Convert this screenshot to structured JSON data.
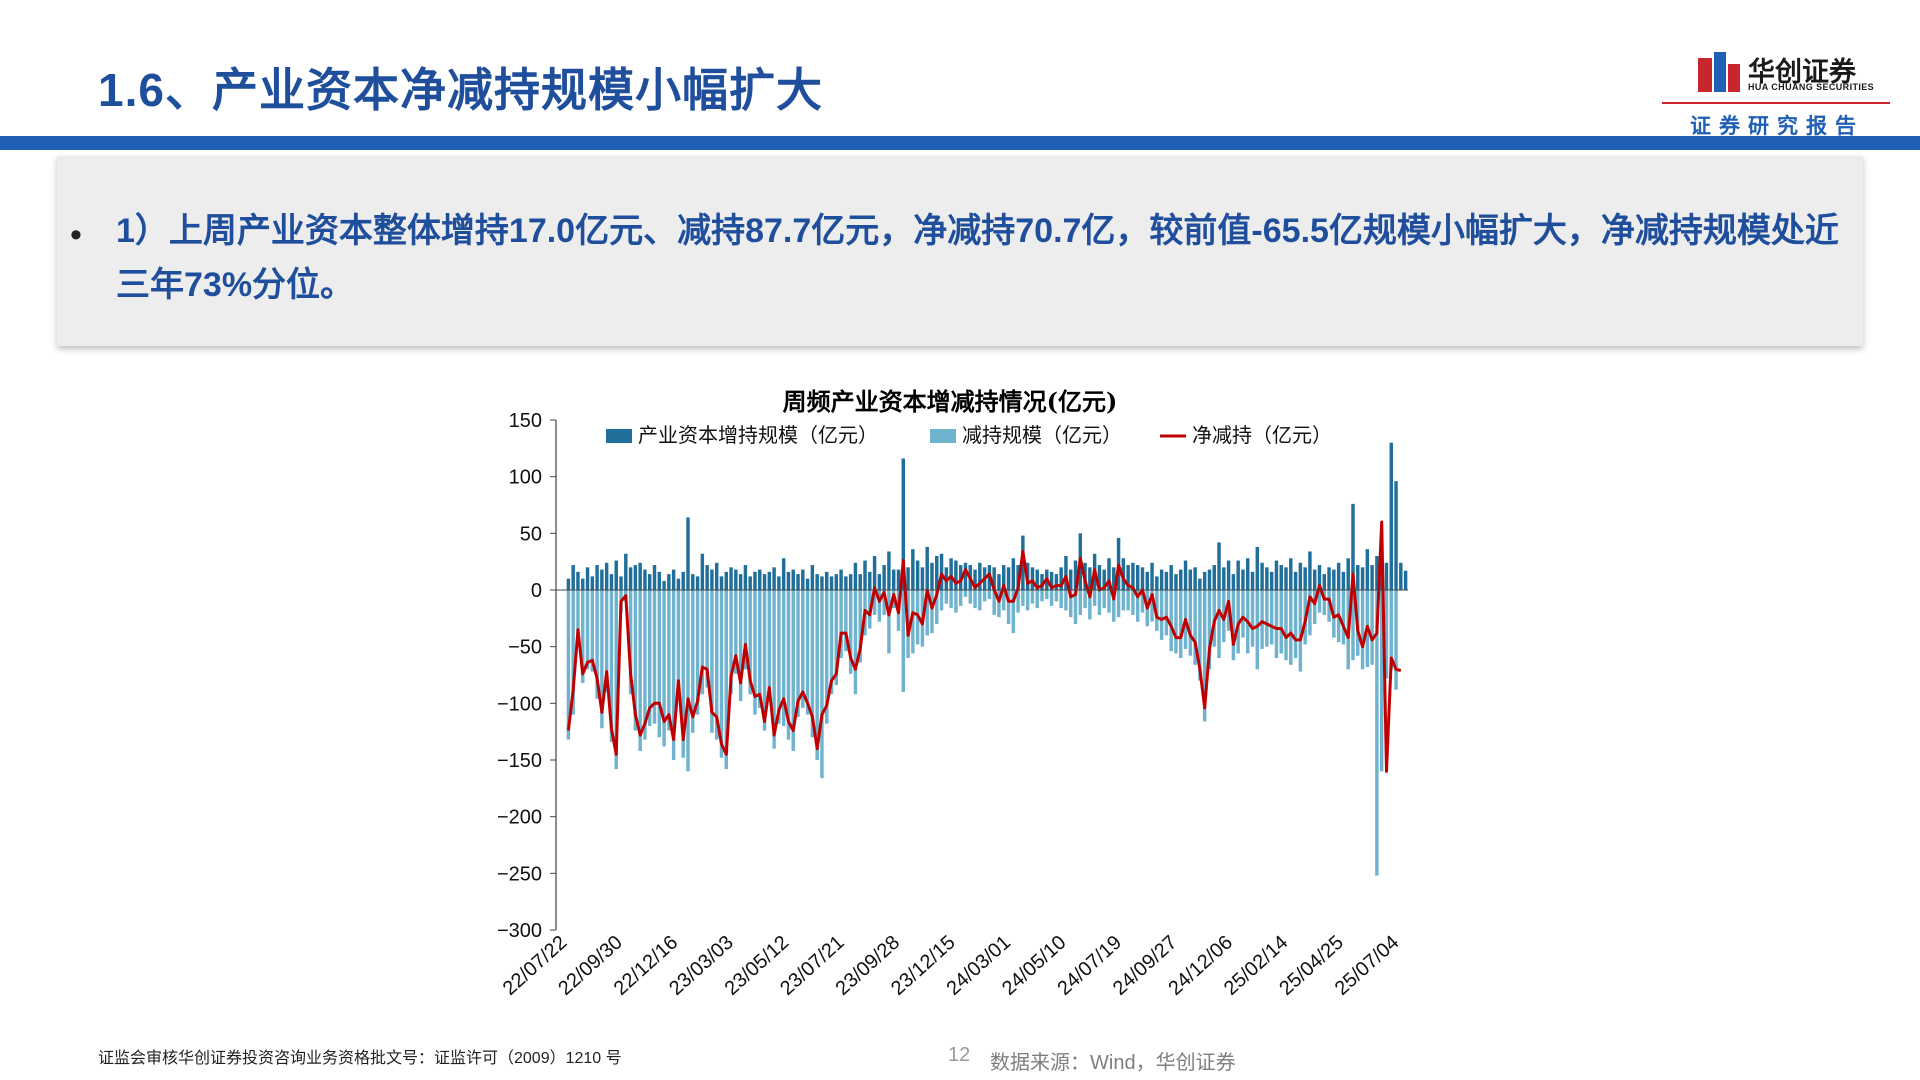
{
  "header": {
    "title": "1.6、产业资本净减持规模小幅扩大",
    "logo_cn": "华创证券",
    "logo_en": "HUA CHUANG SECURITIES",
    "report_tag": "证券研究报告"
  },
  "bullet": {
    "dot": "•",
    "text": "1）上周产业资本整体增持17.0亿元、减持87.7亿元，净减持70.7亿，较前值-65.5亿规模小幅扩大，净减持规模处近三年73%分位。"
  },
  "footer": {
    "license": "证监会审核华创证券投资咨询业务资格批文号：证监许可（2009）1210 号",
    "page": "12",
    "source": "数据来源：Wind，华创证券"
  },
  "colors": {
    "title": "#1f4e9c",
    "accent_bar": "#1f5fb5",
    "logo_red": "#c9252c",
    "increase": "#1f6f9a",
    "decrease": "#6fb3cf",
    "net": "#c00000"
  },
  "chart_data": {
    "type": "bar",
    "title": "周频产业资本增减持情况(亿元)",
    "ylim": [
      -300,
      150
    ],
    "yticks": [
      150,
      100,
      50,
      0,
      -50,
      -100,
      -150,
      -200,
      -250,
      -300
    ],
    "ytick_labels": [
      "150",
      "100",
      "50",
      "0",
      "−50",
      "−100",
      "−150",
      "−200",
      "−250",
      "−300"
    ],
    "xtick_labels": [
      "22/07/22",
      "22/09/30",
      "22/12/16",
      "23/03/03",
      "23/05/12",
      "23/07/21",
      "23/09/28",
      "23/12/15",
      "24/03/01",
      "24/05/10",
      "24/07/19",
      "24/09/27",
      "24/12/06",
      "25/02/14",
      "25/04/25",
      "25/07/04"
    ],
    "legend_position": "top",
    "series": [
      {
        "name": "产业资本增持规模（亿元）",
        "kind": "bar",
        "values": [
          10,
          22,
          16,
          10,
          20,
          12,
          22,
          18,
          24,
          14,
          26,
          12,
          32,
          20,
          22,
          24,
          18,
          14,
          22,
          16,
          8,
          14,
          18,
          10,
          16,
          64,
          14,
          12,
          32,
          22,
          18,
          24,
          12,
          16,
          20,
          18,
          14,
          22,
          12,
          16,
          18,
          14,
          16,
          20,
          12,
          28,
          16,
          18,
          14,
          18,
          10,
          22,
          14,
          12,
          16,
          12,
          14,
          18,
          12,
          14,
          24,
          14,
          26,
          16,
          30,
          14,
          22,
          34,
          18,
          18,
          116,
          20,
          36,
          26,
          20,
          38,
          24,
          30,
          32,
          20,
          28,
          26,
          22,
          24,
          22,
          18,
          24,
          20,
          22,
          20,
          14,
          22,
          20,
          28,
          22,
          48,
          24,
          20,
          18,
          14,
          18,
          16,
          14,
          20,
          30,
          18,
          26,
          50,
          24,
          20,
          32,
          22,
          18,
          28,
          20,
          46,
          28,
          22,
          24,
          22,
          20,
          16,
          24,
          12,
          18,
          16,
          22,
          14,
          18,
          26,
          18,
          20,
          10,
          16,
          18,
          22,
          42,
          20,
          26,
          14,
          26,
          18,
          28,
          16,
          38,
          24,
          20,
          16,
          26,
          22,
          20,
          28,
          16,
          24,
          20,
          34,
          18,
          22,
          14,
          20,
          18,
          24,
          16,
          28,
          76,
          22,
          20,
          36,
          22,
          30,
          18,
          24,
          130,
          96,
          24,
          17
        ]
      },
      {
        "name": "减持规模（亿元）",
        "kind": "bar",
        "values": [
          -132,
          -110,
          -45,
          -82,
          -70,
          -72,
          -96,
          -122,
          -90,
          -134,
          -158,
          -20,
          -10,
          -92,
          -124,
          -142,
          -132,
          -120,
          -118,
          -130,
          -138,
          -124,
          -150,
          -92,
          -148,
          -160,
          -126,
          -110,
          -92,
          -86,
          -126,
          -132,
          -148,
          -158,
          -92,
          -74,
          -98,
          -70,
          -92,
          -110,
          -104,
          -124,
          -98,
          -140,
          -118,
          -120,
          -132,
          -142,
          -112,
          -104,
          -110,
          -130,
          -150,
          -166,
          -118,
          -92,
          -84,
          -60,
          -54,
          -74,
          -92,
          -64,
          -40,
          -34,
          -22,
          -28,
          -22,
          -56,
          -16,
          -36,
          -90,
          -60,
          -56,
          -48,
          -50,
          -40,
          -38,
          -30,
          -18,
          -12,
          -16,
          -20,
          -14,
          -6,
          -12,
          -16,
          -18,
          -10,
          -8,
          -22,
          -24,
          -18,
          -30,
          -38,
          -20,
          -14,
          -18,
          -12,
          -16,
          -10,
          -8,
          -14,
          -10,
          -16,
          -18,
          -24,
          -30,
          -22,
          -16,
          -26,
          -14,
          -22,
          -16,
          -20,
          -28,
          -24,
          -18,
          -18,
          -22,
          -28,
          -20,
          -32,
          -28,
          -36,
          -44,
          -40,
          -54,
          -56,
          -60,
          -52,
          -58,
          -66,
          -80,
          -116,
          -70,
          -50,
          -60,
          -46,
          -36,
          -62,
          -56,
          -42,
          -56,
          -50,
          -70,
          -52,
          -50,
          -48,
          -60,
          -56,
          -62,
          -66,
          -60,
          -72,
          -48,
          -40,
          -30,
          -20,
          -22,
          -28,
          -42,
          -46,
          -48,
          -70,
          -62,
          -58,
          -70,
          -68,
          -66,
          -252,
          -160,
          -78,
          -70,
          -88
        ]
      },
      {
        "name": "净减持（亿元）",
        "kind": "line",
        "values": [
          -124,
          -88,
          -35,
          -74,
          -64,
          -62,
          -78,
          -108,
          -72,
          -122,
          -145,
          -10,
          -5,
          -74,
          -110,
          -128,
          -118,
          -104,
          -100,
          -100,
          -116,
          -110,
          -132,
          -80,
          -132,
          -96,
          -112,
          -98,
          -68,
          -70,
          -108,
          -112,
          -136,
          -145,
          -76,
          -58,
          -82,
          -48,
          -80,
          -94,
          -92,
          -116,
          -86,
          -128,
          -106,
          -96,
          -116,
          -124,
          -98,
          -90,
          -100,
          -112,
          -140,
          -110,
          -102,
          -80,
          -74,
          -38,
          -38,
          -60,
          -70,
          -52,
          -18,
          -22,
          2,
          -10,
          -2,
          -22,
          -4,
          -20,
          26,
          -40,
          -20,
          -22,
          -30,
          0,
          -16,
          -4,
          14,
          8,
          12,
          6,
          8,
          18,
          10,
          2,
          6,
          10,
          14,
          0,
          -10,
          4,
          -10,
          -10,
          2,
          34,
          6,
          8,
          2,
          4,
          10,
          2,
          4,
          4,
          12,
          -6,
          -4,
          28,
          8,
          -6,
          18,
          0,
          2,
          8,
          -8,
          22,
          10,
          4,
          2,
          -6,
          0,
          -16,
          -4,
          -24,
          -26,
          -24,
          -32,
          -42,
          -42,
          -26,
          -40,
          -46,
          -70,
          -104,
          -52,
          -28,
          -18,
          -26,
          -10,
          -48,
          -30,
          -24,
          -28,
          -34,
          -32,
          -28,
          -30,
          -32,
          -34,
          -34,
          -42,
          -38,
          -44,
          -44,
          -28,
          -6,
          -12,
          4,
          -8,
          -8,
          -24,
          -22,
          -32,
          -42,
          14,
          -36,
          -50,
          -32,
          -44,
          -38,
          60,
          -160,
          -60,
          -70,
          -71
        ]
      }
    ]
  }
}
